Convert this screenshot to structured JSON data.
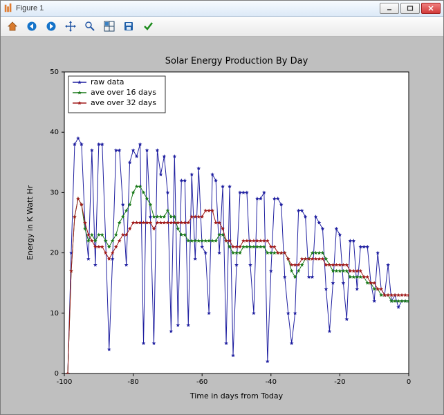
{
  "window": {
    "title": "Figure 1",
    "controls": {
      "minimize": "–",
      "maximize": "□",
      "close": "✕"
    }
  },
  "toolbar": {
    "items": [
      {
        "name": "home-icon"
      },
      {
        "name": "back-icon"
      },
      {
        "name": "forward-icon"
      },
      {
        "name": "pan-icon"
      },
      {
        "name": "zoom-icon"
      },
      {
        "name": "subplot-config-icon"
      },
      {
        "name": "save-icon"
      },
      {
        "name": "check-icon"
      }
    ]
  },
  "chart": {
    "type": "line-scatter",
    "title": "Solar Energy Production By Day",
    "xlabel": "Time in days from Today",
    "ylabel": "Energy in K Watt Hr",
    "xlim": [
      -100,
      0
    ],
    "ylim": [
      0,
      50
    ],
    "xticks": [
      -100,
      -80,
      -60,
      -40,
      -20,
      0
    ],
    "yticks": [
      0,
      10,
      20,
      30,
      40,
      50
    ],
    "background_color": "#bfbfbf",
    "plot_bg": "#ffffff",
    "axis_color": "#000000",
    "tick_fontsize": 10,
    "label_fontsize": 11,
    "title_fontsize": 13,
    "marker": "star",
    "marker_size": 3,
    "line_width": 1,
    "legend": {
      "loc": "upper-left",
      "items": [
        {
          "label": "raw data",
          "color": "#1f1fa0"
        },
        {
          "label": "ave over 16 days",
          "color": "#1a7a1a"
        },
        {
          "label": "ave over 32 days",
          "color": "#a01a1a"
        }
      ]
    },
    "series": [
      {
        "name": "raw data",
        "color": "#1f1fa0",
        "x": [
          -99,
          -98,
          -97,
          -96,
          -95,
          -94,
          -93,
          -92,
          -91,
          -90,
          -89,
          -88,
          -87,
          -86,
          -85,
          -84,
          -83,
          -82,
          -81,
          -80,
          -79,
          -78,
          -77,
          -76,
          -75,
          -74,
          -73,
          -72,
          -71,
          -70,
          -69,
          -68,
          -67,
          -66,
          -65,
          -64,
          -63,
          -62,
          -61,
          -60,
          -59,
          -58,
          -57,
          -56,
          -55,
          -54,
          -53,
          -52,
          -51,
          -50,
          -49,
          -48,
          -47,
          -46,
          -45,
          -44,
          -43,
          -42,
          -41,
          -40,
          -39,
          -38,
          -37,
          -36,
          -35,
          -34,
          -33,
          -32,
          -31,
          -30,
          -29,
          -28,
          -27,
          -26,
          -25,
          -24,
          -23,
          -22,
          -21,
          -20,
          -19,
          -18,
          -17,
          -16,
          -15,
          -14,
          -13,
          -12,
          -11,
          -10,
          -9,
          -8,
          -7,
          -6,
          -5,
          -4,
          -3,
          -2,
          -1,
          0
        ],
        "y": [
          0,
          20,
          38,
          39,
          38,
          25,
          19,
          37,
          18,
          38,
          38,
          22,
          4,
          19,
          37,
          37,
          28,
          18,
          35,
          37,
          36,
          38,
          5,
          37,
          26,
          5,
          37,
          33,
          36,
          30,
          7,
          36,
          8,
          32,
          32,
          8,
          33,
          19,
          34,
          21,
          20,
          10,
          33,
          32,
          20,
          31,
          5,
          31,
          3,
          18,
          30,
          30,
          30,
          18,
          10,
          29,
          29,
          30,
          2,
          17,
          29,
          29,
          28,
          16,
          10,
          5,
          10,
          27,
          27,
          26,
          16,
          16,
          26,
          25,
          24,
          14,
          7,
          15,
          24,
          23,
          15,
          9,
          22,
          22,
          14,
          21,
          21,
          21,
          15,
          12,
          20,
          14,
          13,
          18,
          12,
          13,
          11,
          12,
          12,
          12
        ]
      },
      {
        "name": "ave over 16 days",
        "color": "#1a7a1a",
        "x": [
          -99,
          -98,
          -97,
          -96,
          -95,
          -94,
          -93,
          -92,
          -91,
          -90,
          -89,
          -88,
          -87,
          -86,
          -85,
          -84,
          -83,
          -82,
          -81,
          -80,
          -79,
          -78,
          -77,
          -76,
          -75,
          -74,
          -73,
          -72,
          -71,
          -70,
          -69,
          -68,
          -67,
          -66,
          -65,
          -64,
          -63,
          -62,
          -61,
          -60,
          -59,
          -58,
          -57,
          -56,
          -55,
          -54,
          -53,
          -52,
          -51,
          -50,
          -49,
          -48,
          -47,
          -46,
          -45,
          -44,
          -43,
          -42,
          -41,
          -40,
          -39,
          -38,
          -37,
          -36,
          -35,
          -34,
          -33,
          -32,
          -31,
          -30,
          -29,
          -28,
          -27,
          -26,
          -25,
          -24,
          -23,
          -22,
          -21,
          -20,
          -19,
          -18,
          -17,
          -16,
          -15,
          -14,
          -13,
          -12,
          -11,
          -10,
          -9,
          -8,
          -7,
          -6,
          -5,
          -4,
          -3,
          -2,
          -1,
          0
        ],
        "y": [
          0,
          17,
          26,
          29,
          28,
          24,
          22,
          23,
          22,
          23,
          23,
          22,
          21,
          22,
          23,
          25,
          26,
          27,
          28,
          30,
          31,
          31,
          30,
          29,
          28,
          26,
          26,
          26,
          26,
          27,
          26,
          26,
          24,
          23,
          23,
          22,
          22,
          22,
          22,
          22,
          22,
          22,
          22,
          22,
          23,
          23,
          22,
          21,
          20,
          20,
          20,
          21,
          21,
          21,
          21,
          21,
          21,
          21,
          20,
          20,
          20,
          20,
          20,
          20,
          19,
          17,
          16,
          17,
          18,
          19,
          19,
          20,
          20,
          20,
          20,
          19,
          18,
          17,
          17,
          17,
          17,
          17,
          16,
          16,
          16,
          16,
          16,
          15,
          15,
          14,
          14,
          13,
          13,
          13,
          12,
          12,
          12,
          12,
          12,
          12
        ]
      },
      {
        "name": "ave over 32 days",
        "color": "#a01a1a",
        "x": [
          -99,
          -98,
          -97,
          -96,
          -95,
          -94,
          -93,
          -92,
          -91,
          -90,
          -89,
          -88,
          -87,
          -86,
          -85,
          -84,
          -83,
          -82,
          -81,
          -80,
          -79,
          -78,
          -77,
          -76,
          -75,
          -74,
          -73,
          -72,
          -71,
          -70,
          -69,
          -68,
          -67,
          -66,
          -65,
          -64,
          -63,
          -62,
          -61,
          -60,
          -59,
          -58,
          -57,
          -56,
          -55,
          -54,
          -53,
          -52,
          -51,
          -50,
          -49,
          -48,
          -47,
          -46,
          -45,
          -44,
          -43,
          -42,
          -41,
          -40,
          -39,
          -38,
          -37,
          -36,
          -35,
          -34,
          -33,
          -32,
          -31,
          -30,
          -29,
          -28,
          -27,
          -26,
          -25,
          -24,
          -23,
          -22,
          -21,
          -20,
          -19,
          -18,
          -17,
          -16,
          -15,
          -14,
          -13,
          -12,
          -11,
          -10,
          -9,
          -8,
          -7,
          -6,
          -5,
          -4,
          -3,
          -2,
          -1,
          0
        ],
        "y": [
          0,
          17,
          26,
          29,
          28,
          25,
          23,
          22,
          21,
          21,
          21,
          20,
          19,
          20,
          21,
          22,
          23,
          23,
          24,
          25,
          25,
          25,
          25,
          25,
          25,
          24,
          25,
          25,
          25,
          25,
          25,
          25,
          25,
          25,
          25,
          25,
          26,
          26,
          26,
          26,
          27,
          27,
          27,
          25,
          25,
          24,
          22,
          22,
          21,
          21,
          21,
          22,
          22,
          22,
          22,
          22,
          22,
          22,
          22,
          21,
          21,
          20,
          20,
          20,
          19,
          18,
          18,
          18,
          19,
          19,
          19,
          19,
          19,
          19,
          19,
          18,
          18,
          18,
          18,
          18,
          18,
          18,
          17,
          17,
          17,
          17,
          16,
          16,
          15,
          15,
          14,
          14,
          13,
          13,
          13,
          13,
          13,
          13,
          13,
          13
        ]
      }
    ]
  }
}
